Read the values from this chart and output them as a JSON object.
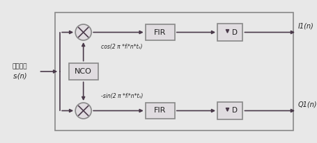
{
  "bg_color": "#e8e8e8",
  "line_color": "#4a3a4a",
  "box_ec": "#888888",
  "box_fc": "#e0dce0",
  "text_color": "#222222",
  "cos_label": "cos(2 π *fᵢ*n*tₛ)",
  "sin_label": "-sin(2 π *fᵢ*n*tₛ)",
  "nco_label": "NCO",
  "fir_label": "FIR",
  "dec_label": "D",
  "out_i_label": "I1(n)",
  "out_q_label": "Q1(n)",
  "input_line1": "数字中频",
  "input_line2": "sᵢ(n)"
}
